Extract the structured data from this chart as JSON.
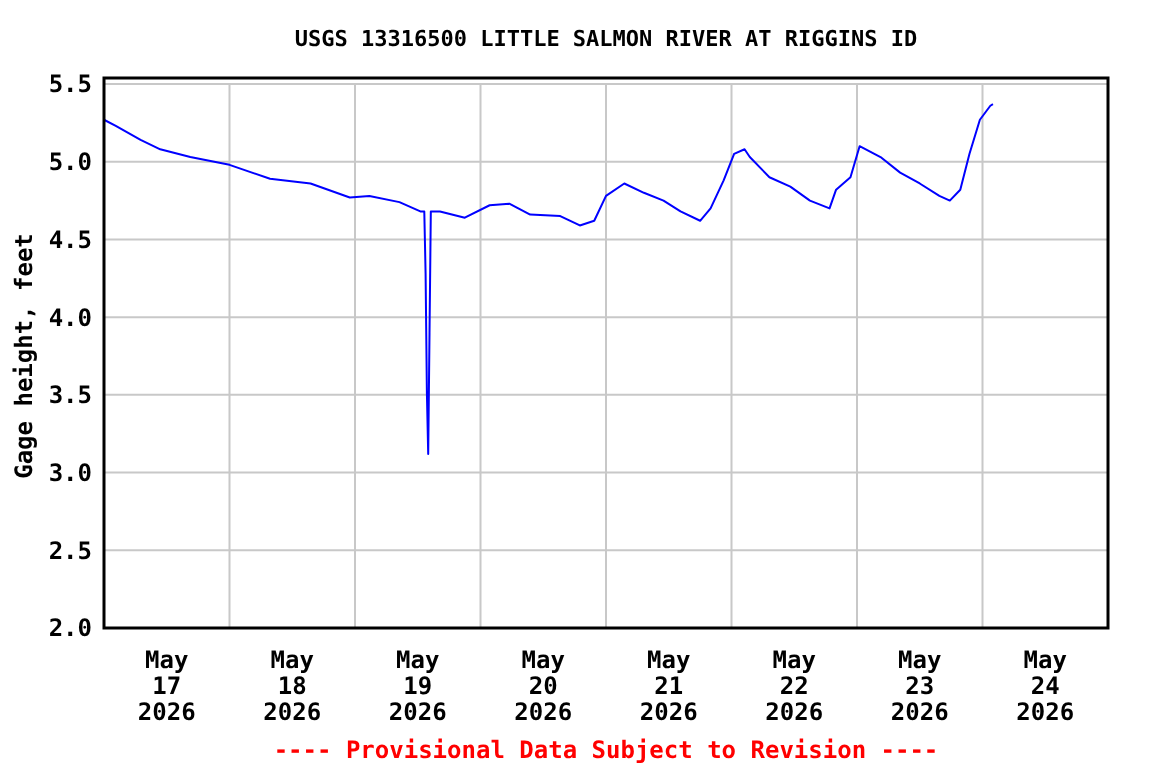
{
  "chart_data": {
    "type": "line",
    "title": "USGS 13316500 LITTLE SALMON RIVER AT RIGGINS ID",
    "ylabel": "Gage height, feet",
    "annotations": [
      "---- Provisional Data Subject to Revision ----"
    ],
    "xlim": [
      "2026-05-17T00:00",
      "2026-05-25T00:00"
    ],
    "xticks": [
      {
        "value": "2026-05-17T00:00",
        "label": null
      },
      {
        "value": "2026-05-17T12:00",
        "label": "May\n17\n2026"
      },
      {
        "value": "2026-05-18T00:00",
        "label": null
      },
      {
        "value": "2026-05-18T12:00",
        "label": "May\n18\n2026"
      },
      {
        "value": "2026-05-19T00:00",
        "label": null
      },
      {
        "value": "2026-05-19T12:00",
        "label": "May\n19\n2026"
      },
      {
        "value": "2026-05-20T00:00",
        "label": null
      },
      {
        "value": "2026-05-20T12:00",
        "label": "May\n20\n2026"
      },
      {
        "value": "2026-05-21T00:00",
        "label": null
      },
      {
        "value": "2026-05-21T12:00",
        "label": "May\n21\n2026"
      },
      {
        "value": "2026-05-22T00:00",
        "label": null
      },
      {
        "value": "2026-05-22T12:00",
        "label": "May\n22\n2026"
      },
      {
        "value": "2026-05-23T00:00",
        "label": null
      },
      {
        "value": "2026-05-23T12:00",
        "label": "May\n23\n2026"
      },
      {
        "value": "2026-05-24T00:00",
        "label": null
      },
      {
        "value": "2026-05-24T12:00",
        "label": "May\n24\n2026"
      },
      {
        "value": "2026-05-25T00:00",
        "label": null
      }
    ],
    "ylim": [
      2.0,
      5.5
    ],
    "yticks": [
      {
        "value": 2,
        "label": "2.0"
      },
      {
        "value": 2.5,
        "label": "2.5"
      },
      {
        "value": 3,
        "label": "3.0"
      },
      {
        "value": 3.5,
        "label": "3.5"
      },
      {
        "value": 4,
        "label": "4.0"
      },
      {
        "value": 4.5,
        "label": "4.5"
      },
      {
        "value": 5,
        "label": "5.0"
      },
      {
        "value": 5.5,
        "label": "5.5"
      }
    ],
    "grid": true,
    "marker": "none",
    "line_style": "solid",
    "x": [
      "2026-05-17T00:00",
      "2026-05-17T02:15",
      "2026-05-17T07:00",
      "2026-05-17T10:45",
      "2026-05-17T16:30",
      "2026-05-18T00:00",
      "2026-05-18T07:45",
      "2026-05-18T15:30",
      "2026-05-18T23:00",
      "2026-05-19T02:45",
      "2026-05-19T08:30",
      "2026-05-19T12:30",
      "2026-05-19T13:15",
      "2026-05-19T13:30",
      "2026-05-19T13:45",
      "2026-05-19T14:00",
      "2026-05-19T14:15",
      "2026-05-19T14:30",
      "2026-05-19T16:15",
      "2026-05-19T21:00",
      "2026-05-20T01:45",
      "2026-05-20T05:30",
      "2026-05-20T09:30",
      "2026-05-20T15:15",
      "2026-05-20T19:00",
      "2026-05-20T21:45",
      "2026-05-21T00:00",
      "2026-05-21T03:30",
      "2026-05-21T07:15",
      "2026-05-21T11:00",
      "2026-05-21T14:15",
      "2026-05-21T18:00",
      "2026-05-21T20:00",
      "2026-05-21T22:30",
      "2026-05-22T00:30",
      "2026-05-22T02:30",
      "2026-05-22T03:30",
      "2026-05-22T07:15",
      "2026-05-22T11:15",
      "2026-05-22T15:00",
      "2026-05-22T18:45",
      "2026-05-22T20:00",
      "2026-05-22T22:45",
      "2026-05-23T00:30",
      "2026-05-23T04:30",
      "2026-05-23T08:15",
      "2026-05-23T12:00",
      "2026-05-23T15:45",
      "2026-05-23T17:45",
      "2026-05-23T19:45",
      "2026-05-23T21:30",
      "2026-05-23T23:30",
      "2026-05-24T01:30",
      "2026-05-24T02:00"
    ],
    "series": [
      {
        "color": "#0000ff",
        "values": [
          5.27,
          5.23,
          5.14,
          5.08,
          5.03,
          4.98,
          4.89,
          4.86,
          4.77,
          4.78,
          4.74,
          4.68,
          4.68,
          4.28,
          3.51,
          3.12,
          3.9,
          4.68,
          4.68,
          4.64,
          4.72,
          4.73,
          4.66,
          4.65,
          4.59,
          4.62,
          4.78,
          4.86,
          4.8,
          4.75,
          4.68,
          4.62,
          4.7,
          4.88,
          5.05,
          5.08,
          5.03,
          4.9,
          4.84,
          4.75,
          4.7,
          4.82,
          4.9,
          5.1,
          5.03,
          4.93,
          4.86,
          4.78,
          4.75,
          4.82,
          5.05,
          5.27,
          5.36,
          5.37
        ]
      }
    ]
  }
}
